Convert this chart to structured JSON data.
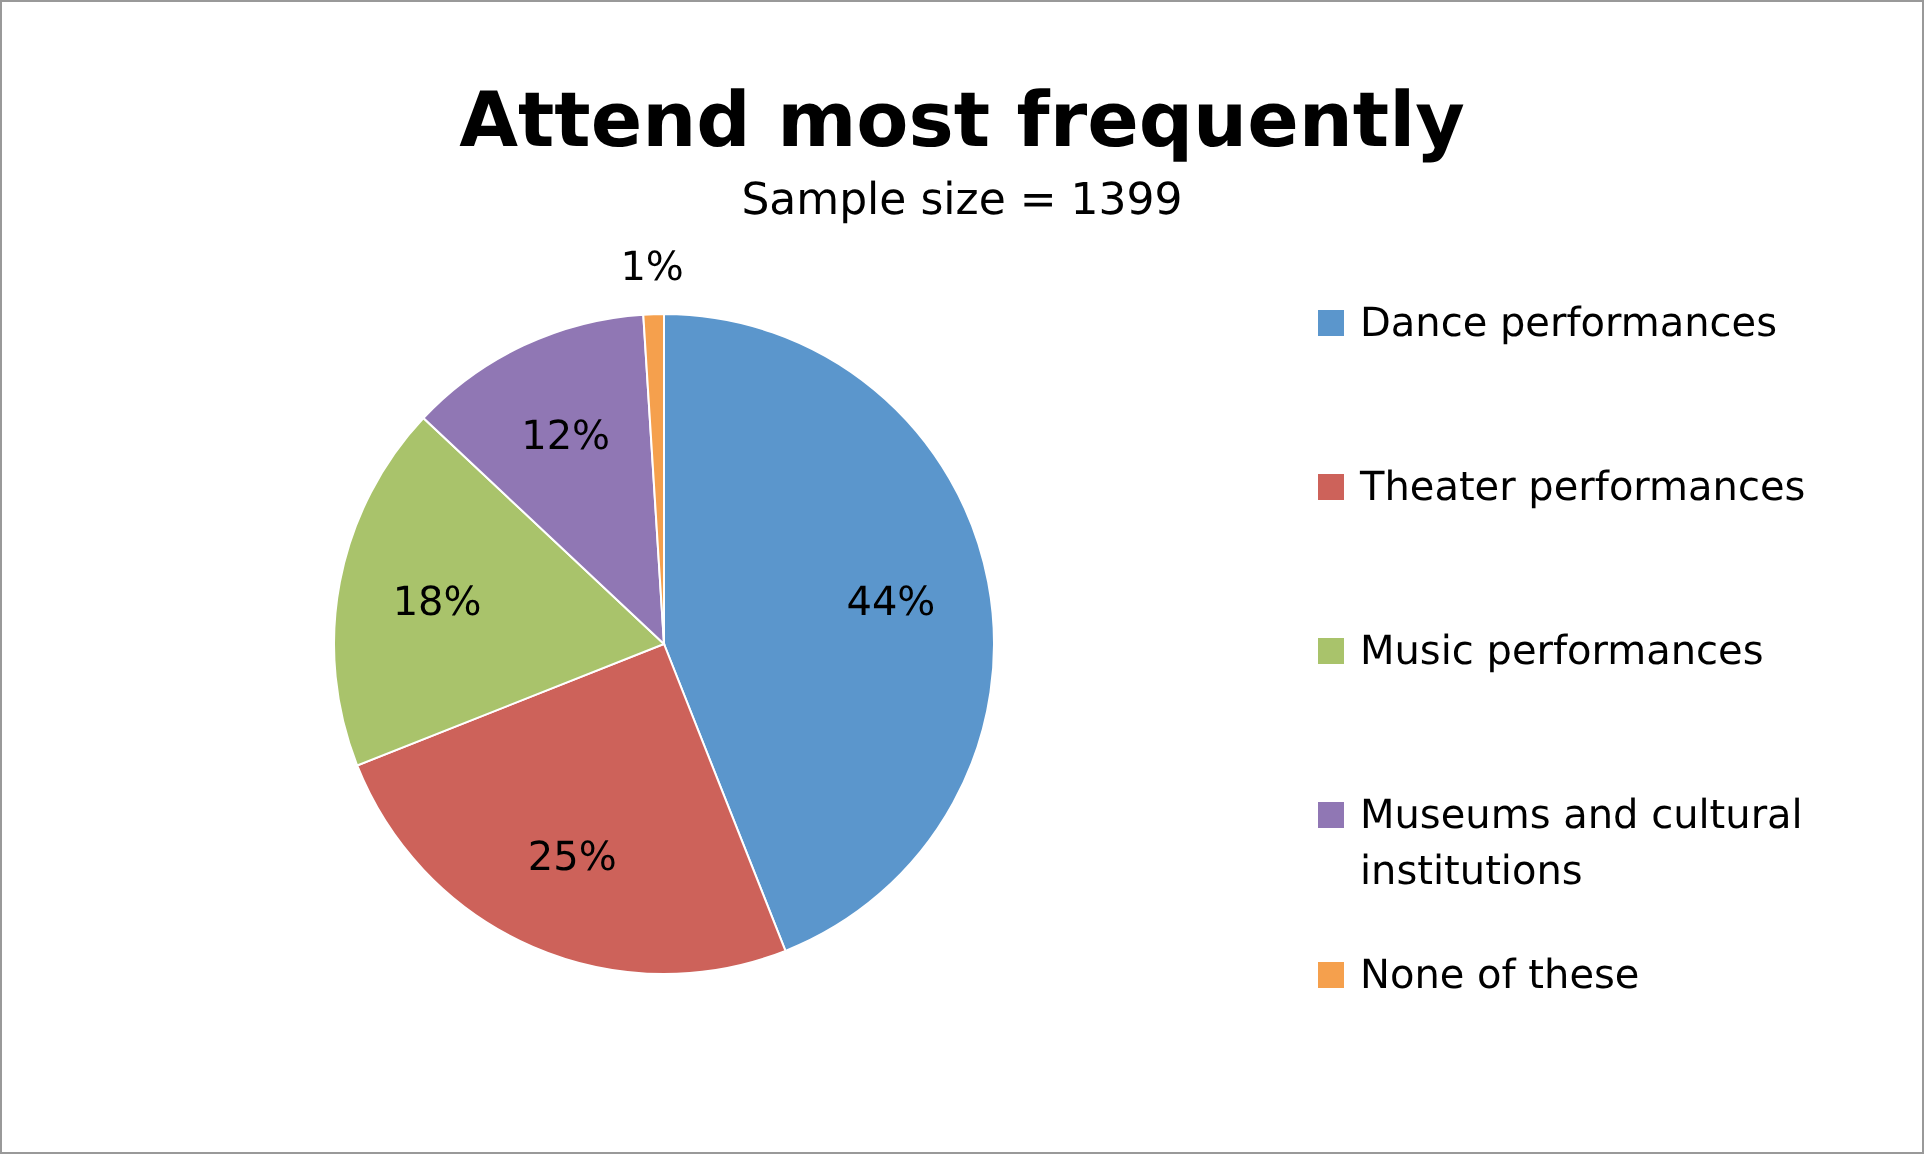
{
  "chart_data": {
    "type": "pie",
    "title": "Attend most frequently",
    "subtitle": "Sample size = 1399",
    "categories": [
      "Dance performances",
      "Theater performances",
      "Music performances",
      "Museums and cultural institutions",
      "None of these"
    ],
    "values": [
      44,
      25,
      18,
      12,
      1
    ],
    "colors": [
      "#5b96cc",
      "#cd625a",
      "#a9c36b",
      "#9077b4",
      "#f5a04d"
    ],
    "value_labels": [
      "44%",
      "25%",
      "18%",
      "12%",
      "1%"
    ],
    "legend": "right"
  }
}
